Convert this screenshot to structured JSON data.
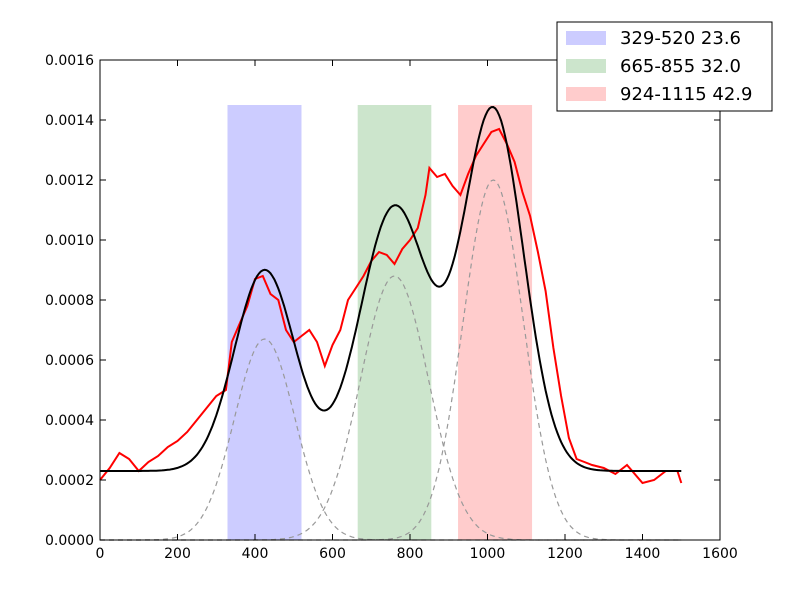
{
  "chart_data": {
    "type": "line",
    "xlim": [
      0,
      1600
    ],
    "ylim": [
      0,
      0.0016
    ],
    "x_ticks": [
      "0",
      "200",
      "400",
      "600",
      "800",
      "1000",
      "1200",
      "1400",
      "1600"
    ],
    "y_ticks": [
      "0.0000",
      "0.0002",
      "0.0004",
      "0.0006",
      "0.0008",
      "0.0010",
      "0.0012",
      "0.0014",
      "0.0016"
    ],
    "grid": false,
    "legend_position": "top-right",
    "bands": [
      {
        "label": "329-520 23.6",
        "x_start": 329,
        "x_end": 520,
        "y_top": 0.00145,
        "color": "#ccccff"
      },
      {
        "label": "665-855 32.0",
        "x_start": 665,
        "x_end": 855,
        "y_top": 0.00145,
        "color": "#cce5cc"
      },
      {
        "label": "924-1115 42.9",
        "x_start": 924,
        "x_end": 1115,
        "y_top": 0.00145,
        "color": "#ffcccc"
      }
    ],
    "series": [
      {
        "role": "data",
        "color": "#ff0000",
        "x": [
          0,
          25,
          50,
          75,
          100,
          125,
          150,
          175,
          200,
          225,
          250,
          275,
          300,
          325,
          340,
          360,
          380,
          400,
          420,
          440,
          460,
          480,
          500,
          520,
          540,
          560,
          580,
          600,
          620,
          640,
          660,
          680,
          700,
          720,
          740,
          760,
          780,
          800,
          820,
          840,
          850,
          870,
          890,
          910,
          930,
          950,
          970,
          990,
          1010,
          1030,
          1050,
          1070,
          1090,
          1110,
          1130,
          1150,
          1170,
          1190,
          1210,
          1230,
          1250,
          1270,
          1300,
          1330,
          1360,
          1400,
          1430,
          1460,
          1490,
          1500
        ],
        "y": [
          0.0002,
          0.00024,
          0.00029,
          0.00027,
          0.00023,
          0.00026,
          0.00028,
          0.00031,
          0.00033,
          0.00036,
          0.0004,
          0.00044,
          0.00048,
          0.0005,
          0.00066,
          0.00072,
          0.00078,
          0.00087,
          0.00088,
          0.00082,
          0.0008,
          0.0007,
          0.00066,
          0.00068,
          0.0007,
          0.00066,
          0.00058,
          0.00065,
          0.0007,
          0.0008,
          0.00084,
          0.00088,
          0.00093,
          0.00096,
          0.00095,
          0.00092,
          0.00097,
          0.001,
          0.00104,
          0.00115,
          0.00124,
          0.00121,
          0.00122,
          0.00118,
          0.00115,
          0.00122,
          0.00128,
          0.00132,
          0.00136,
          0.00137,
          0.00132,
          0.00126,
          0.00116,
          0.00108,
          0.00096,
          0.00083,
          0.00064,
          0.00048,
          0.00034,
          0.00027,
          0.00026,
          0.00025,
          0.00024,
          0.00022,
          0.00025,
          0.00019,
          0.0002,
          0.00023,
          0.00023,
          0.00019
        ]
      },
      {
        "role": "fit",
        "color": "#000000",
        "baseline": 0.00023,
        "components": [
          {
            "center": 425,
            "sigma": 78,
            "amplitude": 0.00067
          },
          {
            "center": 760,
            "sigma": 88,
            "amplitude": 0.00088
          },
          {
            "center": 1015,
            "sigma": 78,
            "amplitude": 0.0012
          }
        ],
        "x_range": [
          0,
          1500
        ]
      },
      {
        "role": "components",
        "color": "#999999",
        "style": "dashed",
        "x_range": [
          0,
          1500
        ]
      }
    ]
  }
}
